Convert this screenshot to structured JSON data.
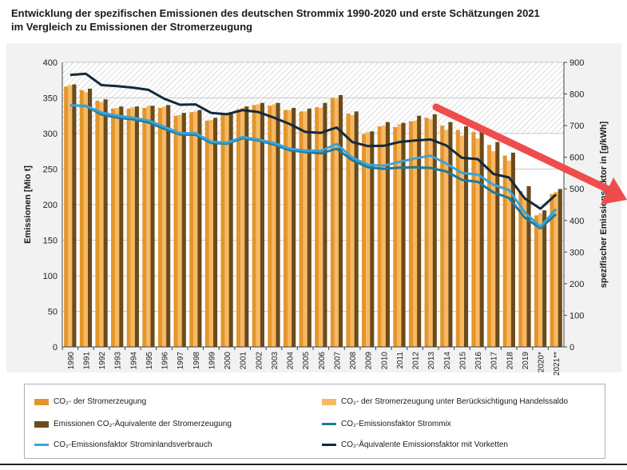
{
  "title": {
    "line1": "Entwicklung der spezifischen Emissionen des deutschen Strommix 1990-2020 und erste Schätzungen 2021",
    "line2": "im Vergleich zu Emissionen der Stromerzeugung"
  },
  "colors": {
    "co2": "#e4952c",
    "co2_trade": "#f7b861",
    "co2eq": "#6b4a1c",
    "factor_mix": "#1f7a9c",
    "factor_inland": "#3aa3d8",
    "factor_chain": "#142a3a",
    "arrow": "#ef4d4d"
  },
  "chart_data": {
    "type": "bar",
    "title": "Entwicklung der spezifischen Emissionen des deutschen Strommix 1990-2020 und erste Schätzungen 2021",
    "ylabel": "Emissionen [Mio t]",
    "y2label": "spezifischer Emissionsfaktor in [g/kWh]",
    "ylim": [
      0,
      400
    ],
    "y2lim": [
      0,
      900
    ],
    "yticks": [
      0,
      50,
      100,
      150,
      200,
      250,
      300,
      350,
      400
    ],
    "y2ticks": [
      0,
      100,
      200,
      300,
      400,
      500,
      600,
      700,
      800,
      900
    ],
    "categories": [
      "1990",
      "1991",
      "1992",
      "1993",
      "1994",
      "1995",
      "1996",
      "1997",
      "1998",
      "1999",
      "2000",
      "2001",
      "2002",
      "2003",
      "2004",
      "2005",
      "2006",
      "2007",
      "2008",
      "2009",
      "2010",
      "2011",
      "2012",
      "2013",
      "2014",
      "2015",
      "2016",
      "2017",
      "2018",
      "2019",
      "2020*",
      "2021**"
    ],
    "bar_series": [
      {
        "name": "CO₂- der Stromerzeugung",
        "color_key": "co2",
        "values": [
          366,
          361,
          346,
          335,
          335,
          336,
          336,
          325,
          330,
          318,
          327,
          334,
          340,
          339,
          333,
          331,
          337,
          350,
          328,
          299,
          310,
          309,
          317,
          322,
          311,
          305,
          302,
          284,
          269,
          219,
          185,
          215
        ]
      },
      {
        "name": "CO₂- der Stromerzeugung unter Berücksichtigung Handelssaldo",
        "color_key": "co2_trade",
        "values": [
          368,
          358,
          344,
          336,
          337,
          339,
          338,
          326,
          331,
          319,
          328,
          336,
          341,
          341,
          333,
          331,
          336,
          349,
          326,
          302,
          311,
          313,
          318,
          320,
          305,
          297,
          293,
          275,
          262,
          208,
          188,
          218
        ]
      },
      {
        "name": "Emissionen CO₂-Äquivalente der Stromerzeugung",
        "color_key": "co2eq",
        "values": [
          369,
          363,
          348,
          338,
          338,
          339,
          340,
          329,
          333,
          322,
          330,
          338,
          343,
          343,
          336,
          335,
          343,
          354,
          331,
          303,
          316,
          315,
          325,
          327,
          316,
          310,
          307,
          288,
          273,
          226,
          192,
          222
        ]
      }
    ],
    "line_series": [
      {
        "name": "CO₂-Emissionsfaktor Strommix",
        "color_key": "factor_mix",
        "axis": "y2",
        "values": [
          764,
          762,
          735,
          725,
          720,
          710,
          690,
          672,
          671,
          645,
          643,
          660,
          653,
          640,
          622,
          616,
          612,
          627,
          590,
          568,
          563,
          567,
          568,
          566,
          555,
          528,
          522,
          489,
          471,
          409,
          375,
          420
        ]
      },
      {
        "name": "CO₂-Emissionsfaktor Strominlandsverbrauch",
        "color_key": "factor_inland",
        "axis": "y2",
        "values": [
          764,
          763,
          741,
          731,
          725,
          716,
          696,
          676,
          676,
          649,
          646,
          664,
          656,
          645,
          627,
          621,
          620,
          642,
          599,
          576,
          573,
          585,
          596,
          605,
          580,
          550,
          545,
          513,
          496,
          426,
          380,
          436
        ]
      },
      {
        "name": "CO₂-Äquivalente Emissionsfaktor mit Vorketten",
        "color_key": "factor_chain",
        "axis": "y2",
        "values": [
          860,
          864,
          828,
          825,
          820,
          813,
          785,
          766,
          767,
          740,
          736,
          749,
          743,
          725,
          705,
          680,
          677,
          694,
          648,
          635,
          636,
          648,
          653,
          656,
          637,
          598,
          594,
          547,
          536,
          470,
          437,
          482
        ]
      }
    ]
  },
  "legend": {
    "co2": "CO₂- der Stromerzeugung",
    "co2_trade": "CO₂- der Stromerzeugung unter Berücksichtigung Handelssaldo",
    "co2eq": "Emissionen CO₂-Äquivalente der Stromerzeugung",
    "factor_mix": "CO₂-Emissionsfaktor Strommix",
    "factor_inland": "CO₂-Emissionsfaktor Strominlandsverbrauch",
    "factor_chain": "CO₂-Äquivalente Emissionsfaktor mit Vorketten"
  }
}
